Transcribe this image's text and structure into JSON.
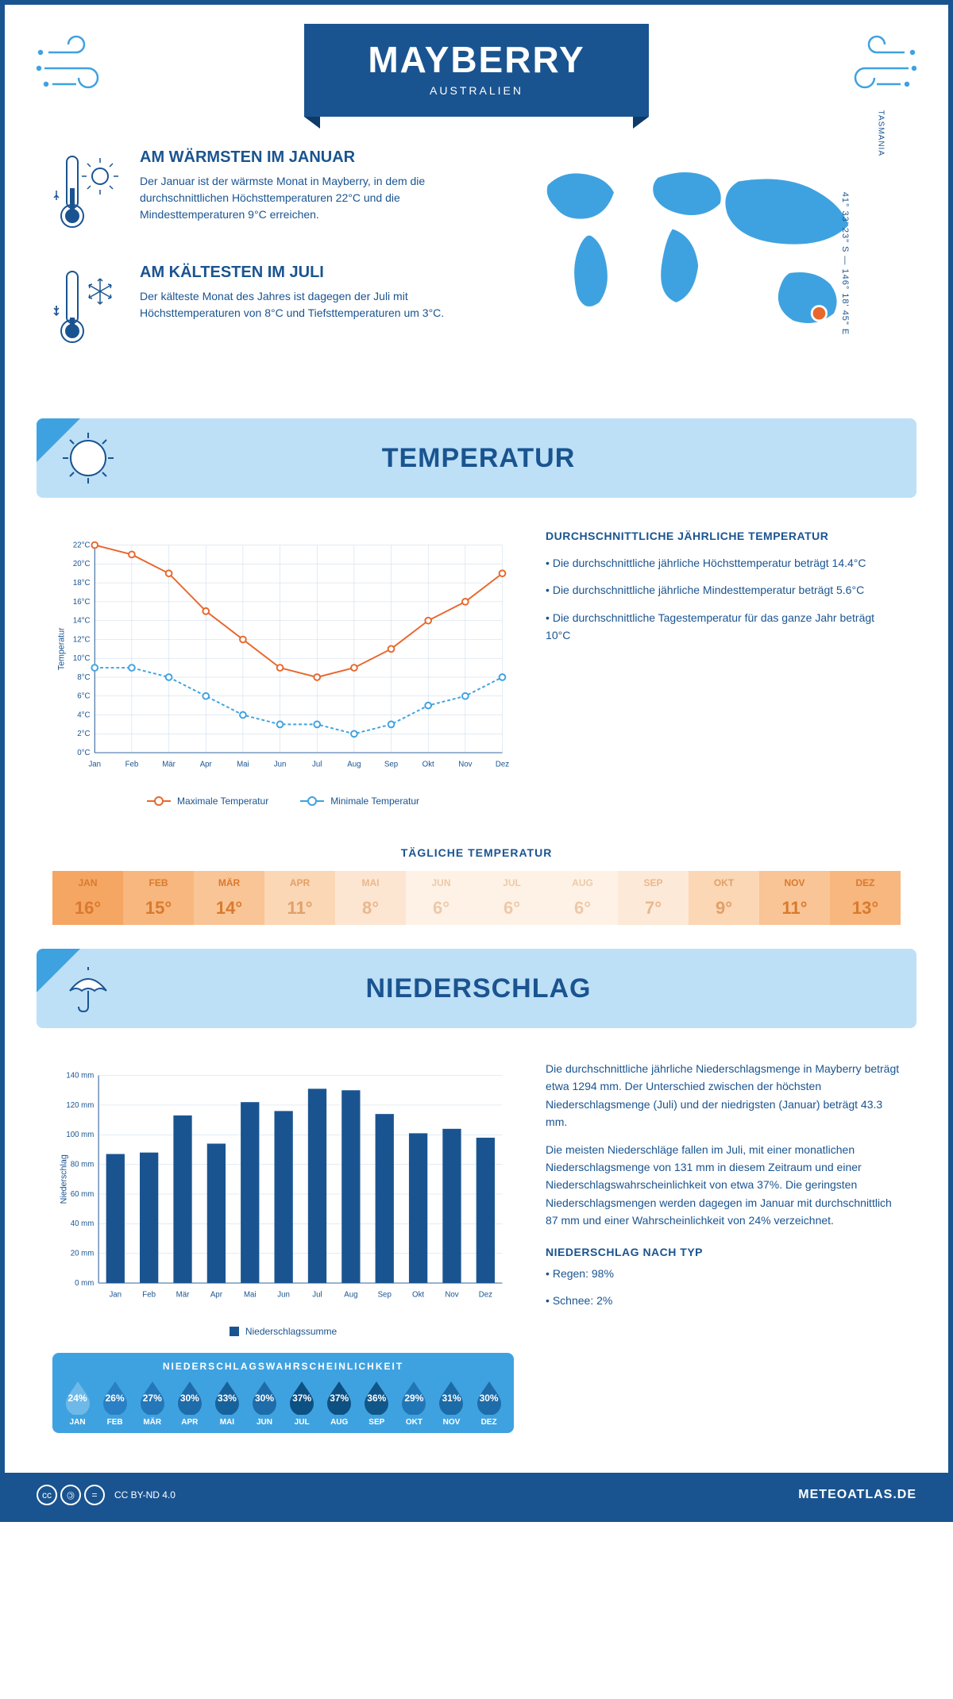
{
  "header": {
    "title": "MAYBERRY",
    "subtitle": "AUSTRALIEN"
  },
  "coords": "41° 33' 23\" S — 146° 18' 45\" E",
  "region": "TASMANIA",
  "warmest": {
    "title": "AM WÄRMSTEN IM JANUAR",
    "text": "Der Januar ist der wärmste Monat in Mayberry, in dem die durchschnittlichen Höchsttemperaturen 22°C und die Mindesttemperaturen 9°C erreichen."
  },
  "coldest": {
    "title": "AM KÄLTESTEN IM JULI",
    "text": "Der kälteste Monat des Jahres ist dagegen der Juli mit Höchsttemperaturen von 8°C und Tiefsttemperaturen um 3°C."
  },
  "temp_section_title": "TEMPERATUR",
  "temp_chart": {
    "months": [
      "Jan",
      "Feb",
      "Mär",
      "Apr",
      "Mai",
      "Jun",
      "Jul",
      "Aug",
      "Sep",
      "Okt",
      "Nov",
      "Dez"
    ],
    "max": [
      22,
      21,
      19,
      15,
      12,
      9,
      8,
      9,
      11,
      14,
      16,
      19
    ],
    "min": [
      9,
      9,
      8,
      6,
      4,
      3,
      3,
      2,
      3,
      5,
      6,
      8
    ],
    "max_color": "#e8672c",
    "min_color": "#3fa2e0",
    "ylabel": "Temperatur",
    "ylim": [
      0,
      22
    ],
    "ytick_step": 2,
    "grid_color": "#c5d8e8",
    "legend_max": "Maximale Temperatur",
    "legend_min": "Minimale Temperatur"
  },
  "temp_text": {
    "title": "DURCHSCHNITTLICHE JÄHRLICHE TEMPERATUR",
    "bullet1": "• Die durchschnittliche jährliche Höchsttemperatur beträgt 14.4°C",
    "bullet2": "• Die durchschnittliche jährliche Mindesttemperatur beträgt 5.6°C",
    "bullet3": "• Die durchschnittliche Tagestemperatur für das ganze Jahr beträgt 10°C"
  },
  "daily_temp_title": "TÄGLICHE TEMPERATUR",
  "daily_temp": {
    "months": [
      "JAN",
      "FEB",
      "MÄR",
      "APR",
      "MAI",
      "JUN",
      "JUL",
      "AUG",
      "SEP",
      "OKT",
      "NOV",
      "DEZ"
    ],
    "values": [
      "16°",
      "15°",
      "14°",
      "11°",
      "8°",
      "6°",
      "6°",
      "6°",
      "7°",
      "9°",
      "11°",
      "13°"
    ],
    "colors": [
      "#f5a663",
      "#f7b77e",
      "#f9c596",
      "#fbd7b5",
      "#fde6d1",
      "#fef2e6",
      "#fef2e6",
      "#fef2e6",
      "#fde9d7",
      "#fbd7b5",
      "#f9c596",
      "#f7b77e"
    ],
    "text_colors": [
      "#d97a2e",
      "#d97a2e",
      "#d97a2e",
      "#e1a06a",
      "#e8b88f",
      "#edc9a9",
      "#edc9a9",
      "#edc9a9",
      "#e8b88f",
      "#e1a06a",
      "#d97a2e",
      "#d97a2e"
    ]
  },
  "precip_section_title": "NIEDERSCHLAG",
  "precip_chart": {
    "months": [
      "Jan",
      "Feb",
      "Mär",
      "Apr",
      "Mai",
      "Jun",
      "Jul",
      "Aug",
      "Sep",
      "Okt",
      "Nov",
      "Dez"
    ],
    "values": [
      87,
      88,
      113,
      94,
      122,
      116,
      131,
      130,
      114,
      101,
      104,
      98
    ],
    "ylabel": "Niederschlag",
    "ylim": [
      0,
      140
    ],
    "ytick_step": 20,
    "bar_color": "#1a5490",
    "grid_color": "#c5d8e8",
    "legend": "Niederschlagssumme"
  },
  "precip_text": {
    "p1": "Die durchschnittliche jährliche Niederschlagsmenge in Mayberry beträgt etwa 1294 mm. Der Unterschied zwischen der höchsten Niederschlagsmenge (Juli) und der niedrigsten (Januar) beträgt 43.3 mm.",
    "p2": "Die meisten Niederschläge fallen im Juli, mit einer monatlichen Niederschlagsmenge von 131 mm in diesem Zeitraum und einer Niederschlagswahrscheinlichkeit von etwa 37%. Die geringsten Niederschlagsmengen werden dagegen im Januar mit durchschnittlich 87 mm und einer Wahrscheinlichkeit von 24% verzeichnet."
  },
  "precip_prob": {
    "title": "NIEDERSCHLAGSWAHRSCHEINLICHKEIT",
    "months": [
      "JAN",
      "FEB",
      "MÄR",
      "APR",
      "MAI",
      "JUN",
      "JUL",
      "AUG",
      "SEP",
      "OKT",
      "NOV",
      "DEZ"
    ],
    "values": [
      "24%",
      "26%",
      "27%",
      "30%",
      "33%",
      "30%",
      "37%",
      "37%",
      "36%",
      "29%",
      "31%",
      "30%"
    ],
    "drop_colors": [
      "#6fb9e8",
      "#2980c4",
      "#2477b8",
      "#1e6ca9",
      "#17629b",
      "#1e6ca9",
      "#0d5082",
      "#0d5082",
      "#105688",
      "#2176b6",
      "#1b6ba6",
      "#1e6ca9"
    ]
  },
  "precip_type": {
    "title": "NIEDERSCHLAG NACH TYP",
    "rain": "• Regen: 98%",
    "snow": "• Schnee: 2%"
  },
  "footer": {
    "license": "CC BY-ND 4.0",
    "site": "METEOATLAS.DE"
  }
}
